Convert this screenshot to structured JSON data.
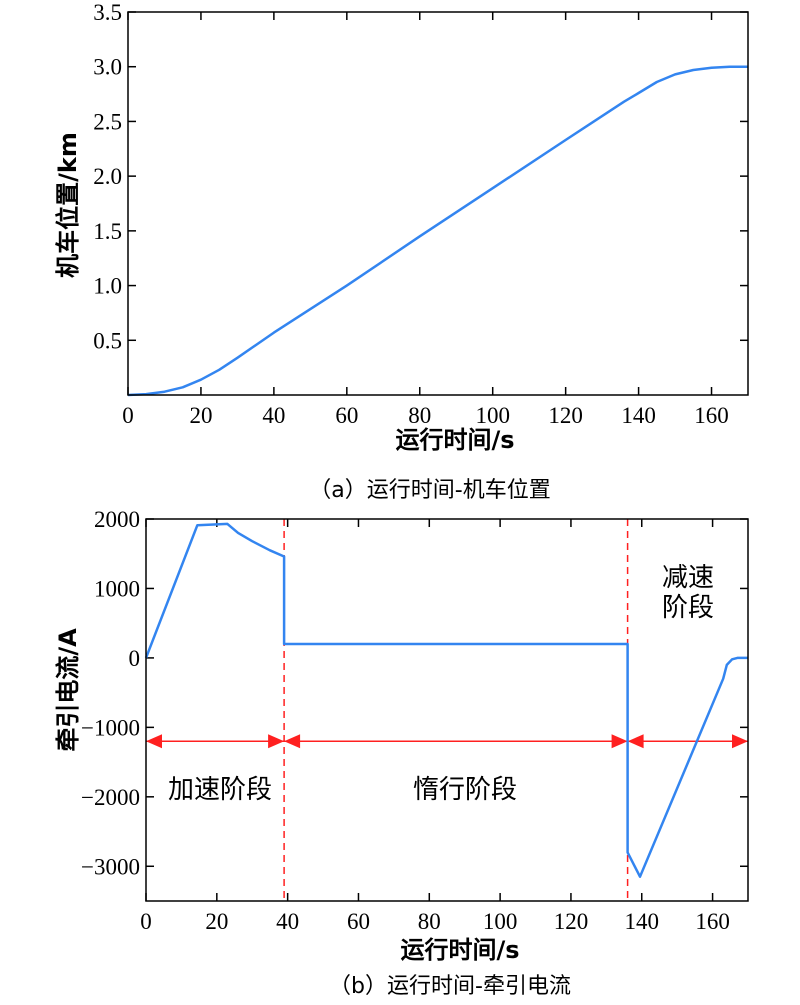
{
  "chart_data": [
    {
      "type": "line",
      "caption": "（a）运行时间-机车位置",
      "xlabel": "运行时间/s",
      "ylabel": "机车位置/km",
      "xlim": [
        0,
        170
      ],
      "ylim": [
        0,
        3.5
      ],
      "xticks": [
        0,
        20,
        40,
        60,
        80,
        100,
        120,
        140,
        160
      ],
      "xtick_labels": [
        "0",
        "20",
        "40",
        "60",
        "80",
        "100",
        "120",
        "140",
        "160"
      ],
      "yticks": [
        0.5,
        1.0,
        1.5,
        2.0,
        2.5,
        3.0,
        3.5
      ],
      "ytick_labels": [
        "0.5",
        "1.0",
        "1.5",
        "2.0",
        "2.5",
        "3.0",
        "3.5"
      ],
      "grid": false,
      "series": [
        {
          "name": "position",
          "color": "#3385f0",
          "x": [
            0,
            5,
            10,
            15,
            20,
            25,
            30,
            40,
            60,
            80,
            100,
            120,
            136,
            140,
            145,
            150,
            155,
            160,
            165,
            170
          ],
          "y": [
            0,
            0.008,
            0.03,
            0.07,
            0.14,
            0.23,
            0.34,
            0.57,
            1.0,
            1.45,
            1.89,
            2.33,
            2.68,
            2.76,
            2.86,
            2.93,
            2.97,
            2.99,
            3.0,
            3.0
          ]
        }
      ]
    },
    {
      "type": "line",
      "caption": "（b）运行时间-牵引电流",
      "xlabel": "运行时间/s",
      "ylabel": "牵引电流/A",
      "xlim": [
        0,
        170
      ],
      "ylim": [
        -3500,
        2000
      ],
      "xticks": [
        0,
        20,
        40,
        60,
        80,
        100,
        120,
        140,
        160
      ],
      "xtick_labels": [
        "0",
        "20",
        "40",
        "60",
        "80",
        "100",
        "120",
        "140",
        "160"
      ],
      "yticks": [
        -3000,
        -2000,
        -1000,
        0,
        1000,
        2000
      ],
      "ytick_labels": [
        "−3000",
        "−2000",
        "−1000",
        "0",
        "1000",
        "2000"
      ],
      "grid": false,
      "series": [
        {
          "name": "current",
          "color": "#3385f0",
          "x": [
            0,
            14.5,
            23,
            26,
            30,
            35,
            39,
            39,
            136,
            136,
            139.5,
            163,
            164,
            165.5,
            167,
            170
          ],
          "y": [
            0,
            1910,
            1930,
            1800,
            1680,
            1550,
            1460,
            200,
            200,
            -2800,
            -3150,
            -300,
            -100,
            -20,
            0,
            0
          ]
        }
      ],
      "phase_boundaries": [
        39,
        136
      ],
      "phase_color": "#ff2020",
      "arrow_level": -1200,
      "phases": [
        {
          "label": "加速阶段",
          "from": 0,
          "to": 39
        },
        {
          "label": "惰行阶段",
          "from": 39,
          "to": 136
        },
        {
          "label": "减速阶段",
          "lines": [
            "减速",
            "阶段"
          ],
          "from": 136,
          "to": 170
        }
      ]
    }
  ]
}
